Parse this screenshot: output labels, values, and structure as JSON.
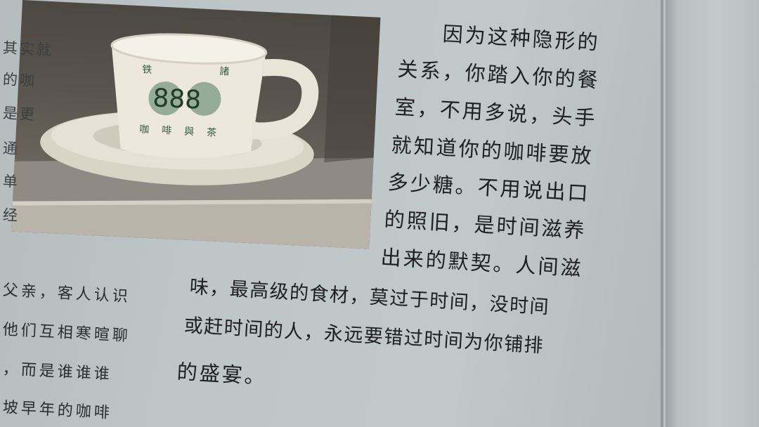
{
  "cup_print": {
    "top_left": "铁",
    "top_right": "諸",
    "number": "888",
    "bottom_text": "咖啡與茶"
  },
  "left_column_fragments": [
    "其实就",
    "的咖",
    "是更",
    "通",
    "单",
    "经"
  ],
  "left_bottom_lines": [
    "父亲，客人认识",
    "他们互相寒暄聊",
    "，而是谁谁谁",
    "坡早年的咖啡"
  ],
  "main_text": {
    "lines": [
      "因为这种隐形的",
      "关系，你踏入你的餐",
      "室，不用多说，头手",
      "就知道你的咖啡要放",
      "多少糖。不用说出口",
      "的照旧，是时间滋养",
      "出来的默契。人间滋",
      "味，最高级的食材，莫过于时间，没时间",
      "或赶时间的人，永远要错过时间为你铺排",
      "的盛宴。"
    ]
  }
}
